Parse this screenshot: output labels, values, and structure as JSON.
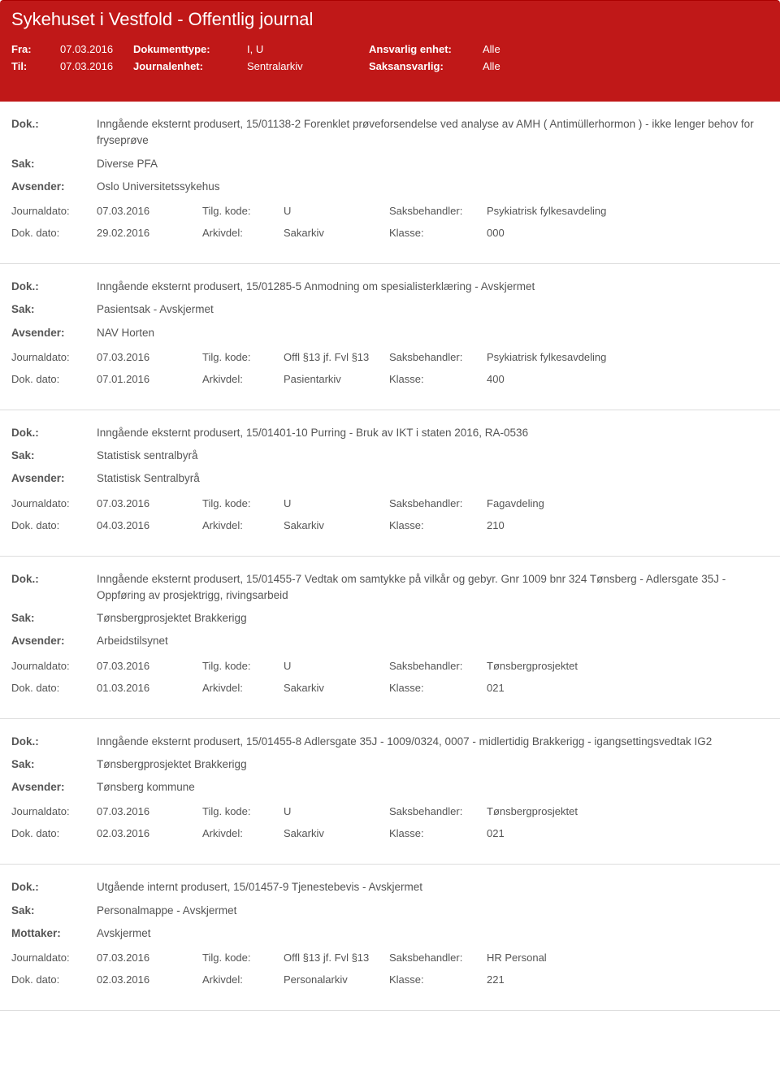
{
  "colors": {
    "header_bg": "#c01818",
    "header_text": "#ffffff",
    "body_text": "#555555",
    "border": "#dddddd"
  },
  "header": {
    "title": "Sykehuset i Vestfold - Offentlig journal",
    "fra_label": "Fra:",
    "fra_value": "07.03.2016",
    "til_label": "Til:",
    "til_value": "07.03.2016",
    "doktype_label": "Dokumenttype:",
    "doktype_value": "I, U",
    "journalenhet_label": "Journalenhet:",
    "journalenhet_value": "Sentralarkiv",
    "ansvarlig_label": "Ansvarlig enhet:",
    "ansvarlig_value": "Alle",
    "saksansvarlig_label": "Saksansvarlig:",
    "saksansvarlig_value": "Alle"
  },
  "labels": {
    "dok": "Dok.:",
    "sak": "Sak:",
    "avsender": "Avsender:",
    "mottaker": "Mottaker:",
    "journaldato": "Journaldato:",
    "tilgkode": "Tilg. kode:",
    "saksbehandler": "Saksbehandler:",
    "dokdato": "Dok. dato:",
    "arkivdel": "Arkivdel:",
    "klasse": "Klasse:"
  },
  "entries": [
    {
      "dok": "Inngående eksternt produsert, 15/01138-2 Forenklet prøveforsendelse ved analyse av AMH ( Antimüllerhormon ) - ikke lenger behov for fryseprøve",
      "sak": "Diverse PFA",
      "party_label": "Avsender:",
      "party": "Oslo Universitetssykehus",
      "journaldato": "07.03.2016",
      "tilgkode": "U",
      "saksbehandler": "Psykiatrisk fylkesavdeling",
      "dokdato": "29.02.2016",
      "arkivdel": "Sakarkiv",
      "klasse": "000"
    },
    {
      "dok": "Inngående eksternt produsert, 15/01285-5 Anmodning om spesialisterklæring - Avskjermet",
      "sak": "Pasientsak - Avskjermet",
      "party_label": "Avsender:",
      "party": "NAV Horten",
      "journaldato": "07.03.2016",
      "tilgkode": "Offl §13 jf. Fvl §13",
      "saksbehandler": "Psykiatrisk fylkesavdeling",
      "dokdato": "07.01.2016",
      "arkivdel": "Pasientarkiv",
      "klasse": "400"
    },
    {
      "dok": "Inngående eksternt produsert, 15/01401-10 Purring - Bruk av IKT i staten 2016, RA-0536",
      "sak": "Statistisk sentralbyrå",
      "party_label": "Avsender:",
      "party": "Statistisk Sentralbyrå",
      "journaldato": "07.03.2016",
      "tilgkode": "U",
      "saksbehandler": "Fagavdeling",
      "dokdato": "04.03.2016",
      "arkivdel": "Sakarkiv",
      "klasse": "210"
    },
    {
      "dok": "Inngående eksternt produsert, 15/01455-7 Vedtak om samtykke på vilkår og gebyr. Gnr 1009 bnr 324 Tønsberg - Adlersgate 35J - Oppføring av prosjektrigg, rivingsarbeid",
      "sak": "Tønsbergprosjektet Brakkerigg",
      "party_label": "Avsender:",
      "party": "Arbeidstilsynet",
      "journaldato": "07.03.2016",
      "tilgkode": "U",
      "saksbehandler": "Tønsbergprosjektet",
      "dokdato": "01.03.2016",
      "arkivdel": "Sakarkiv",
      "klasse": "021"
    },
    {
      "dok": "Inngående eksternt produsert, 15/01455-8 Adlersgate 35J - 1009/0324, 0007 - midlertidig Brakkerigg - igangsettingsvedtak IG2",
      "sak": "Tønsbergprosjektet Brakkerigg",
      "party_label": "Avsender:",
      "party": "Tønsberg kommune",
      "journaldato": "07.03.2016",
      "tilgkode": "U",
      "saksbehandler": "Tønsbergprosjektet",
      "dokdato": "02.03.2016",
      "arkivdel": "Sakarkiv",
      "klasse": "021"
    },
    {
      "dok": "Utgående internt produsert, 15/01457-9 Tjenestebevis - Avskjermet",
      "sak": "Personalmappe - Avskjermet",
      "party_label": "Mottaker:",
      "party": "Avskjermet",
      "journaldato": "07.03.2016",
      "tilgkode": "Offl §13 jf. Fvl §13",
      "saksbehandler": "HR Personal",
      "dokdato": "02.03.2016",
      "arkivdel": "Personalarkiv",
      "klasse": "221"
    }
  ]
}
